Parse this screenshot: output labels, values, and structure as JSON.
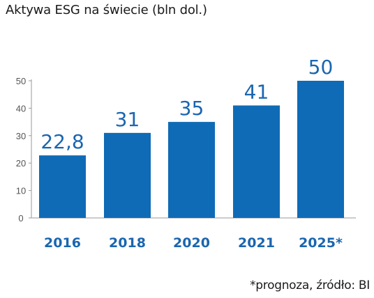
{
  "title": "Aktywa ESG na świecie (bln dol.)",
  "footnote": "*prognoza, źródło: BI",
  "colors": {
    "bar": "#0f6bb6",
    "label": "#1a66b0",
    "axis": "#9a9a9a",
    "tick": "#555555"
  },
  "chart_data": {
    "type": "bar",
    "title": "Aktywa ESG na świecie (bln dol.)",
    "xlabel": "",
    "ylabel": "",
    "categories": [
      "2016",
      "2018",
      "2020",
      "2021",
      "2025*"
    ],
    "values": [
      22.8,
      31,
      35,
      41,
      50
    ],
    "data_labels": [
      "22,8",
      "31",
      "35",
      "41",
      "50"
    ],
    "yticks": [
      "0",
      "10",
      "20",
      "30",
      "40",
      "50"
    ],
    "ylim": [
      0,
      50
    ],
    "grid": false,
    "legend": "none"
  }
}
